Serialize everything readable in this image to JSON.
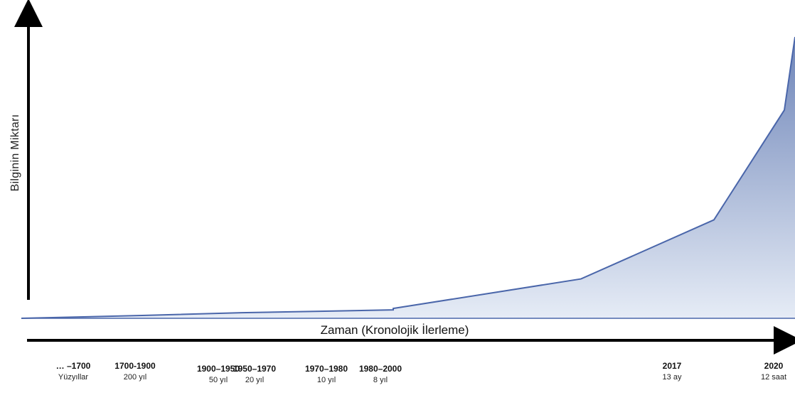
{
  "chart_data": {
    "type": "area",
    "ylabel": "Bilginin Miktarı",
    "xlabel": "Zaman (Kronolojik İlerleme)",
    "colors": {
      "fill_top": "#6d84b8",
      "fill_bottom": "#e6ecf6",
      "line": "#4a66aa",
      "axis": "#000000"
    },
    "periods": [
      {
        "label": "… –1700",
        "duration": "Yüzyıllar"
      },
      {
        "label": "1700-1900",
        "duration": "200 yıl"
      },
      {
        "label": "1900–1950",
        "duration": "50 yıl"
      },
      {
        "label": "1950–1970",
        "duration": "20 yıl"
      },
      {
        "label": "1970–1980",
        "duration": "10 yıl"
      },
      {
        "label": "1980–2000",
        "duration": "8 yıl"
      },
      {
        "label": "2017",
        "duration": "13 ay"
      },
      {
        "label": "2020",
        "duration": "12 saat"
      }
    ],
    "series": [
      {
        "values": [
          0.0,
          0.01,
          0.02,
          0.025,
          0.03,
          0.035,
          0.14,
          0.35,
          0.74,
          1.0
        ]
      }
    ],
    "ylim": [
      0,
      1
    ]
  }
}
